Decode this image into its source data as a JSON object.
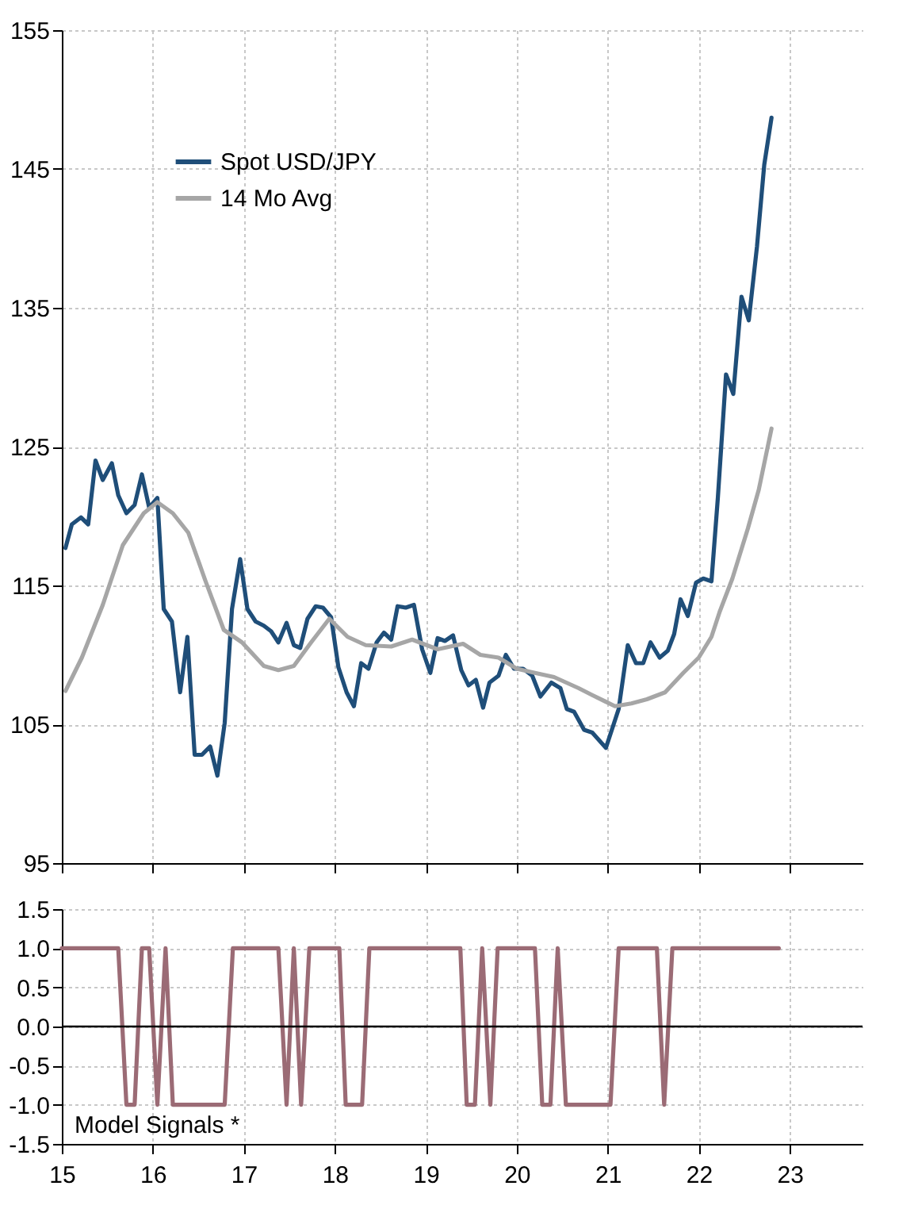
{
  "chart_data": [
    {
      "type": "line",
      "xlim": [
        15,
        23.8
      ],
      "xticks": [
        15,
        16,
        17,
        18,
        19,
        20,
        21,
        22,
        23
      ],
      "ylim": [
        95,
        155
      ],
      "yticks": [
        95,
        105,
        115,
        125,
        135,
        145,
        155
      ],
      "tick_labels": "y",
      "grid": true,
      "legend": "top left",
      "line_style": "solid",
      "series": [
        {
          "name": "Spot USD/JPY",
          "color": "#1f4e79",
          "x": [
            15.04,
            15.11,
            15.21,
            15.29,
            15.37,
            15.45,
            15.55,
            15.62,
            15.71,
            15.8,
            15.88,
            15.96,
            16.05,
            16.12,
            16.21,
            16.3,
            16.38,
            16.46,
            16.54,
            16.63,
            16.71,
            16.79,
            16.87,
            16.96,
            17.04,
            17.13,
            17.22,
            17.3,
            17.38,
            17.47,
            17.55,
            17.62,
            17.7,
            17.79,
            17.87,
            17.96,
            18.04,
            18.13,
            18.21,
            18.29,
            18.37,
            18.46,
            18.54,
            18.62,
            18.69,
            18.78,
            18.87,
            18.96,
            19.05,
            19.13,
            19.21,
            19.3,
            19.39,
            19.47,
            19.55,
            19.63,
            19.7,
            19.8,
            19.88,
            19.97,
            20.07,
            20.17,
            20.26,
            20.38,
            20.48,
            20.55,
            20.63,
            20.74,
            20.83,
            20.98,
            21.12,
            21.22,
            21.31,
            21.39,
            21.47,
            21.57,
            21.66,
            21.73,
            21.8,
            21.88,
            21.97,
            22.05,
            22.14,
            22.21,
            22.3,
            22.38,
            22.47,
            22.55,
            22.64,
            22.72,
            22.8
          ],
          "values": [
            117.7,
            119.4,
            119.9,
            119.4,
            124.0,
            122.6,
            123.8,
            121.5,
            120.2,
            120.8,
            123.0,
            120.6,
            121.3,
            113.3,
            112.4,
            107.3,
            111.3,
            102.8,
            102.8,
            103.4,
            101.3,
            105.1,
            113.3,
            116.9,
            113.3,
            112.4,
            112.1,
            111.7,
            110.9,
            112.3,
            110.7,
            110.5,
            112.6,
            113.5,
            113.4,
            112.7,
            109.1,
            107.3,
            106.3,
            109.4,
            109.0,
            110.9,
            111.6,
            111.1,
            113.5,
            113.4,
            113.6,
            110.4,
            108.7,
            111.2,
            111.0,
            111.4,
            108.9,
            107.8,
            108.2,
            106.2,
            108.0,
            108.5,
            110.0,
            109.0,
            109.0,
            108.5,
            107.0,
            108.0,
            107.6,
            106.1,
            105.9,
            104.6,
            104.4,
            103.3,
            106.1,
            110.7,
            109.4,
            109.4,
            110.9,
            109.8,
            110.3,
            111.5,
            114.0,
            112.8,
            115.2,
            115.5,
            115.3,
            121.3,
            130.2,
            128.8,
            135.8,
            134.1,
            139.4,
            145.3,
            148.7
          ]
        },
        {
          "name": "14 Mo Avg",
          "color": "#a6a6a6",
          "x": [
            15.04,
            15.22,
            15.45,
            15.67,
            15.9,
            16.05,
            16.22,
            16.39,
            16.58,
            16.78,
            16.98,
            17.22,
            17.38,
            17.55,
            17.74,
            17.94,
            18.14,
            18.34,
            18.62,
            18.85,
            19.13,
            19.41,
            19.6,
            19.8,
            20.0,
            20.2,
            20.41,
            20.68,
            20.83,
            21.08,
            21.26,
            21.43,
            21.63,
            21.83,
            22.0,
            22.14,
            22.23,
            22.37,
            22.54,
            22.66,
            22.8
          ],
          "values": [
            107.4,
            109.8,
            113.6,
            117.9,
            120.2,
            121.0,
            120.2,
            118.8,
            115.3,
            111.8,
            110.9,
            109.2,
            108.9,
            109.2,
            110.9,
            112.6,
            111.3,
            110.7,
            110.6,
            111.1,
            110.4,
            110.8,
            110.0,
            109.8,
            109.0,
            108.7,
            108.4,
            107.6,
            107.1,
            106.3,
            106.5,
            106.8,
            107.3,
            108.7,
            109.8,
            111.3,
            113.1,
            115.5,
            119.1,
            121.9,
            126.3
          ]
        }
      ]
    },
    {
      "type": "line",
      "xlim": [
        15,
        23.8
      ],
      "xticks": [
        15,
        16,
        17,
        18,
        19,
        20,
        21,
        22,
        23
      ],
      "ylim": [
        -1.5,
        1.5
      ],
      "yticks": [
        {
          "value": -1.5,
          "label": "-1.5"
        },
        {
          "value": -1,
          "label": "-1.0"
        },
        {
          "value": -0.5,
          "label": "-0.5"
        },
        {
          "value": 0,
          "label": "0.0"
        },
        {
          "value": 0.5,
          "label": "0.5"
        },
        {
          "value": 1,
          "label": "1.0"
        },
        1.5
      ],
      "grid": true,
      "line_style": "solid",
      "ref_lines": [
        {
          "axis": "y",
          "value": 0,
          "color": "#000000"
        }
      ],
      "annotations": [
        "Model Signals *"
      ],
      "series": [
        {
          "color": "#9b6b75",
          "x": [
            15.0,
            15.62,
            15.71,
            15.8,
            15.88,
            15.96,
            16.05,
            16.14,
            16.22,
            16.79,
            16.88,
            17.38,
            17.47,
            17.55,
            17.63,
            17.72,
            18.05,
            18.12,
            18.3,
            18.38,
            19.38,
            19.45,
            19.54,
            19.62,
            19.71,
            19.79,
            20.2,
            20.28,
            20.37,
            20.45,
            20.54,
            21.03,
            21.12,
            21.54,
            21.62,
            21.71,
            22.88
          ],
          "values": [
            1,
            1,
            -1,
            -1,
            1,
            1,
            -1,
            1,
            -1,
            -1,
            1,
            1,
            -1,
            1,
            -1,
            1,
            1,
            -1,
            -1,
            1,
            1,
            -1,
            -1,
            1,
            -1,
            1,
            1,
            -1,
            -1,
            1,
            -1,
            -1,
            1,
            1,
            -1,
            1,
            1
          ]
        }
      ]
    }
  ]
}
